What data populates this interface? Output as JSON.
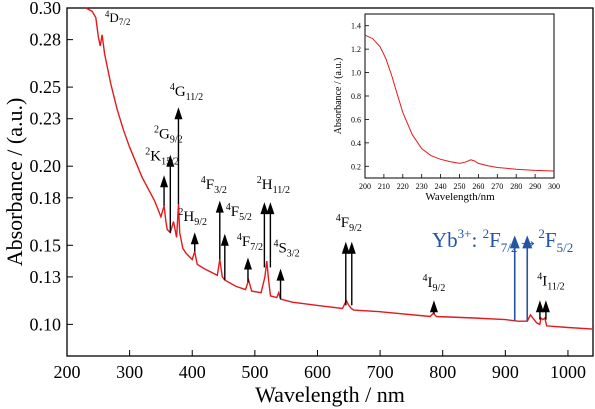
{
  "chart_data": [
    {
      "type": "line",
      "title": "",
      "xlabel": "Wavelength / nm",
      "ylabel": "Absorbance / (a.u.)",
      "xlim": [
        200,
        1040
      ],
      "ylim": [
        0.08,
        0.3
      ],
      "x_ticks": [
        200,
        300,
        400,
        500,
        600,
        700,
        800,
        900,
        1000
      ],
      "y_ticks": [
        0.1,
        0.13,
        0.15,
        0.18,
        0.2,
        0.23,
        0.25,
        0.28,
        0.3
      ],
      "y_tick_labels": [
        "0.10",
        "0.13",
        "0.15",
        "0.18",
        "0.20",
        "0.23",
        "0.25",
        "0.28",
        "0.30"
      ],
      "grid": false,
      "series_color": "#e31a1c",
      "series": [
        {
          "x": [
            230,
            240,
            246,
            250,
            253,
            256,
            260,
            270,
            280,
            290,
            300,
            320,
            340,
            350,
            355,
            358,
            360,
            365,
            370,
            375,
            378,
            380,
            385,
            390,
            400,
            404,
            408,
            420,
            440,
            444,
            448,
            452,
            470,
            485,
            490,
            495,
            510,
            516,
            519,
            522,
            525,
            535,
            538,
            541,
            560,
            600,
            640,
            646,
            650,
            654,
            658,
            700,
            780,
            785,
            790,
            850,
            900,
            920,
            935,
            940,
            950,
            955,
            957,
            960,
            963,
            966,
            1000,
            1040
          ],
          "y": [
            0.302,
            0.298,
            0.294,
            0.282,
            0.276,
            0.283,
            0.271,
            0.252,
            0.236,
            0.223,
            0.212,
            0.193,
            0.178,
            0.168,
            0.175,
            0.165,
            0.16,
            0.158,
            0.165,
            0.155,
            0.176,
            0.158,
            0.148,
            0.145,
            0.141,
            0.146,
            0.138,
            0.135,
            0.131,
            0.141,
            0.13,
            0.128,
            0.124,
            0.122,
            0.128,
            0.121,
            0.12,
            0.13,
            0.14,
            0.128,
            0.118,
            0.117,
            0.12,
            0.116,
            0.114,
            0.112,
            0.11,
            0.115,
            0.112,
            0.11,
            0.109,
            0.108,
            0.105,
            0.107,
            0.105,
            0.104,
            0.103,
            0.102,
            0.102,
            0.106,
            0.101,
            0.1,
            0.104,
            0.103,
            0.104,
            0.099,
            0.098,
            0.097
          ]
        }
      ],
      "annotations": [
        {
          "sup": "4",
          "term": "D",
          "sub": "7/2",
          "x": 251
        },
        {
          "sup": "2",
          "term": "K",
          "sub": "15/2",
          "x": 355
        },
        {
          "sup": "2",
          "term": "G",
          "sub": "9/2",
          "x": 365
        },
        {
          "sup": "4",
          "term": "G",
          "sub": "11/2",
          "x": 378
        },
        {
          "sup": "2",
          "term": "H",
          "sub": "9/2",
          "x": 404
        },
        {
          "sup": "4",
          "term": "F",
          "sub": "3/2",
          "x": 444
        },
        {
          "sup": "4",
          "term": "F",
          "sub": "5/2",
          "x": 452
        },
        {
          "sup": "4",
          "term": "F",
          "sub": "7/2",
          "x": 489
        },
        {
          "sup": "2",
          "term": "H",
          "sub": "11/2",
          "x": 520
        },
        {
          "sup": "4",
          "term": "S",
          "sub": "3/2",
          "x": 541
        },
        {
          "sup": "4",
          "term": "F",
          "sub": "9/2",
          "x": 650
        },
        {
          "sup": "4",
          "term": "I",
          "sub": "9/2",
          "x": 786
        },
        {
          "sup": "4",
          "term": "I",
          "sub": "11/2",
          "x": 960
        }
      ],
      "yb_label": {
        "ion": "Yb",
        "charge": "3+",
        "from_sup": "2",
        "from_term": "F",
        "from_sub": "7/2",
        "arrow": "→",
        "to_sup": "2",
        "to_term": "F",
        "to_sub": "5/2",
        "arrow_x": [
          915,
          935
        ],
        "color": "#2255a4"
      }
    },
    {
      "type": "line",
      "title": "",
      "xlabel": "Wavelength/nm",
      "ylabel": "Absorbance / (a.u.)",
      "xlim": [
        200,
        300
      ],
      "ylim": [
        0.1,
        1.5
      ],
      "x_ticks": [
        200,
        210,
        220,
        230,
        240,
        250,
        260,
        270,
        280,
        290,
        300
      ],
      "y_ticks": [
        0.2,
        0.4,
        0.6,
        0.8,
        1.0,
        1.2,
        1.4
      ],
      "y_tick_labels": [
        "0.2",
        "0.4",
        "0.6",
        "0.8",
        "1.0",
        "1.2",
        "1.4"
      ],
      "grid": false,
      "series_color": "#e31a1c",
      "series": [
        {
          "x": [
            200,
            204,
            208,
            211,
            214,
            217,
            220,
            225,
            230,
            235,
            240,
            245,
            250,
            253,
            256,
            258,
            260,
            265,
            270,
            280,
            290,
            300
          ],
          "y": [
            1.32,
            1.29,
            1.22,
            1.12,
            0.98,
            0.82,
            0.66,
            0.47,
            0.35,
            0.29,
            0.26,
            0.24,
            0.225,
            0.235,
            0.255,
            0.245,
            0.225,
            0.205,
            0.19,
            0.175,
            0.165,
            0.16
          ]
        }
      ]
    }
  ]
}
